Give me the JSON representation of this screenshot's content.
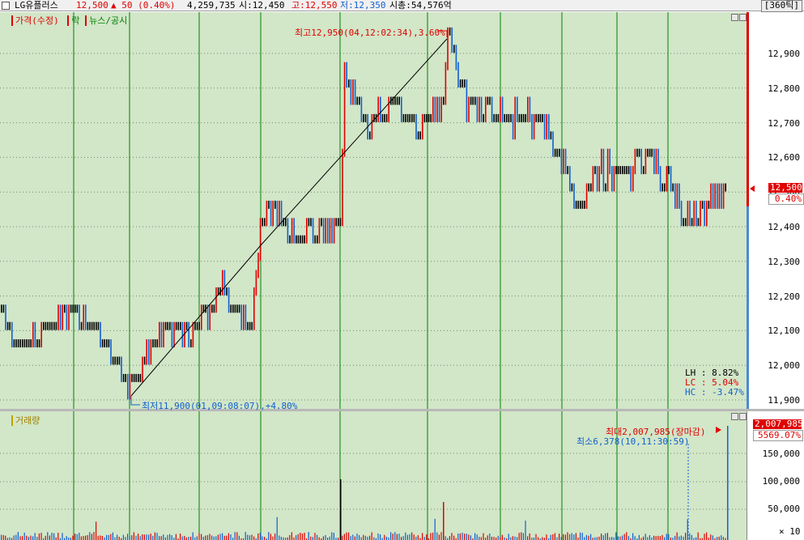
{
  "header": {
    "name": "LG유플러스",
    "price": "12,500",
    "change": "▲ 50 (0.40%)",
    "volume": "4,259,735",
    "open": "시:12,450",
    "high": "고:12,550",
    "low": "저:12,350",
    "mcap": "시총:54,576억",
    "tick": "[360틱]"
  },
  "legend": {
    "price": "가격(수정)",
    "rak": "락",
    "news": "뉴스/공시",
    "volume": "거래량"
  },
  "price_axis": [
    "12,900",
    "12,800",
    "12,700",
    "12,600",
    "12,500",
    "12,400",
    "12,300",
    "12,200",
    "12,100",
    "12,000",
    "11,900"
  ],
  "volume_axis": [
    "150,000",
    "100,000",
    "50,000"
  ],
  "volume_unit": "× 10",
  "current": {
    "price": "12,500",
    "pct": "0.40%"
  },
  "annotations": {
    "high": "최고12,950(04,12:02:34),3.60%",
    "low": "최저11,900(01,09:08:07),+4.80%",
    "vol_max": "최대2,007,985(장마감)",
    "vol_min": "최소6,378(10,11:30:59)",
    "vol_max_box": "2,007,985",
    "vol_max_pct": "5569.07%"
  },
  "stats": {
    "lh": "LH :  8.82%",
    "lc": "LC :  5.04%",
    "hc": "HC : -3.47%"
  },
  "colors": {
    "up": "#e00000",
    "down": "#1060d0",
    "flat": "#000000",
    "grid": "#008000",
    "bg": "#d2e6c8"
  }
}
